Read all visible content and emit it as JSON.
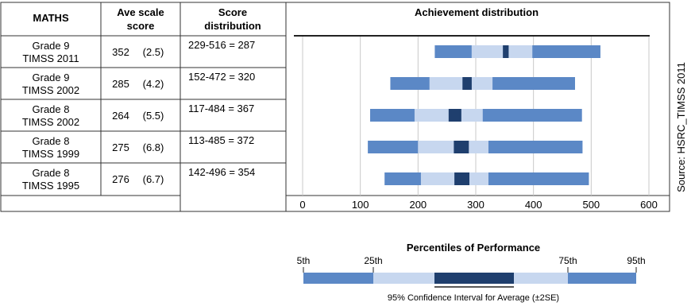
{
  "table": {
    "headers": {
      "subject": "MATHS",
      "ave_line1": "Ave scale",
      "ave_line2": "score",
      "dist_line1": "Score",
      "dist_line2": "distribution",
      "chart_title": "Achievement distribution"
    },
    "rows": [
      {
        "grade": "Grade 9",
        "study": "TIMSS 2011",
        "average": "352",
        "se": "(2.5)",
        "distribution": "229-516 = 287"
      },
      {
        "grade": "Grade 9",
        "study": "TIMSS 2002",
        "average": "285",
        "se": "(4.2)",
        "distribution": "152-472 = 320"
      },
      {
        "grade": "Grade 8",
        "study": "TIMSS 2002",
        "average": "264",
        "se": "(5.5)",
        "distribution": "117-484 = 367"
      },
      {
        "grade": "Grade 8",
        "study": "TIMSS 1999",
        "average": "275",
        "se": "(6.8)",
        "distribution": "113-485 = 372"
      },
      {
        "grade": "Grade 8",
        "study": "TIMSS 1995",
        "average": "276",
        "se": "(6.7)",
        "distribution": "142-496 = 354"
      }
    ]
  },
  "source": "Source: HSRC_TIMSS 2011",
  "legend": {
    "title": "Percentiles of Performance",
    "labels": [
      "5th",
      "25th",
      "75th",
      "95th"
    ],
    "ci_label": "95% Confidence Interval for Average (±2SE)"
  },
  "colors": {
    "outer": "#5b88c6",
    "inner": "#c7d7ef",
    "ci": "#1f3f6e",
    "grid": "#c8c8c8",
    "border": "#333333"
  },
  "chart_data": {
    "type": "bar",
    "title": "Achievement distribution",
    "xlim": [
      0,
      600
    ],
    "xticks": [
      0,
      100,
      200,
      300,
      400,
      500,
      600
    ],
    "grid": "vertical",
    "categories": [
      "Grade 9 TIMSS 2011",
      "Grade 9 TIMSS 2002",
      "Grade 8 TIMSS 2002",
      "Grade 8 TIMSS 1999",
      "Grade 8 TIMSS 1995"
    ],
    "series": [
      {
        "name": "5th",
        "values": [
          229,
          152,
          117,
          113,
          142
        ]
      },
      {
        "name": "25th",
        "values": [
          293,
          220,
          194,
          200,
          205
        ]
      },
      {
        "name": "CI low",
        "values": [
          347,
          277,
          253,
          262,
          263
        ]
      },
      {
        "name": "CI high",
        "values": [
          357,
          293,
          275,
          288,
          289
        ]
      },
      {
        "name": "75th",
        "values": [
          398,
          329,
          312,
          322,
          322
        ]
      },
      {
        "name": "95th",
        "values": [
          516,
          472,
          484,
          485,
          496
        ]
      }
    ]
  }
}
